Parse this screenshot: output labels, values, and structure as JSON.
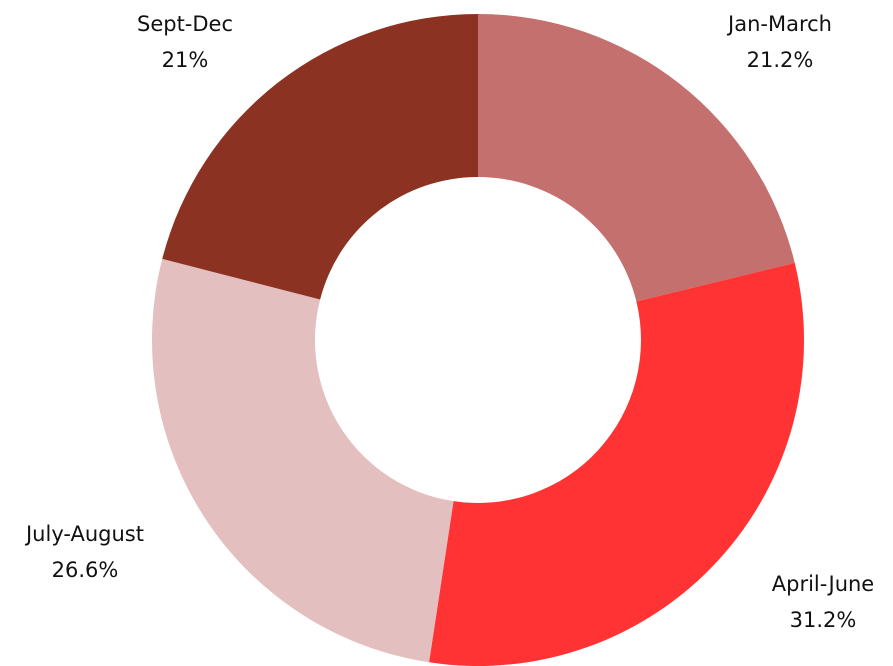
{
  "chart_data": {
    "type": "donut",
    "categories": [
      "Jan-March",
      "April-June",
      "July-August",
      "Sept-Dec"
    ],
    "values": [
      21.2,
      31.2,
      26.6,
      21
    ],
    "value_labels": [
      "21.2%",
      "31.2%",
      "26.6%",
      "21%"
    ],
    "colors": [
      "#c4706e",
      "#ff3333",
      "#e4bfbf",
      "#8b3222"
    ]
  }
}
